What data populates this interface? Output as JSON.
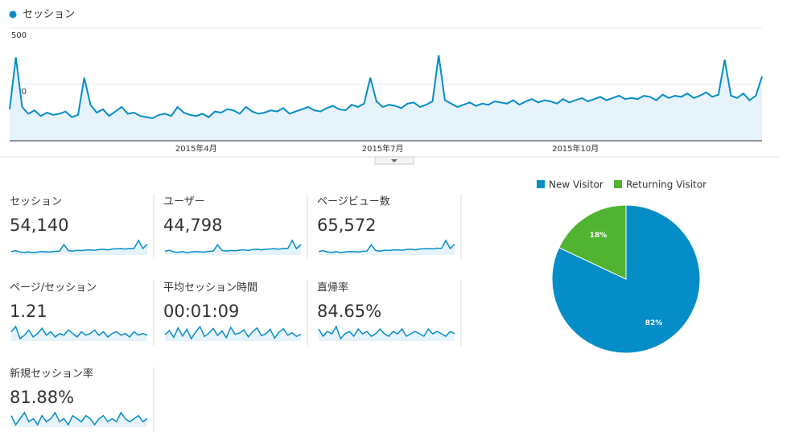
{
  "chart_data": [
    {
      "type": "line",
      "categories": [
        null,
        null,
        null,
        null,
        null,
        null,
        null,
        null,
        null,
        null,
        null,
        null,
        null,
        null,
        null,
        null,
        null,
        null,
        null,
        null,
        null,
        null,
        null,
        null,
        null,
        null,
        null,
        null,
        null,
        null,
        "2015年4月",
        null,
        null,
        null,
        null,
        null,
        null,
        null,
        null,
        null,
        null,
        null,
        null,
        null,
        null,
        null,
        null,
        null,
        null,
        null,
        null,
        null,
        null,
        null,
        null,
        null,
        null,
        null,
        null,
        null,
        "2015年7月",
        null,
        null,
        null,
        null,
        null,
        null,
        null,
        null,
        null,
        null,
        null,
        null,
        null,
        null,
        null,
        null,
        null,
        null,
        null,
        null,
        null,
        null,
        null,
        null,
        null,
        null,
        null,
        null,
        null,
        null,
        "2015年10月",
        null,
        null,
        null,
        null,
        null,
        null,
        null,
        null,
        null,
        null,
        null,
        null,
        null,
        null,
        null,
        null,
        null,
        null,
        null,
        null,
        null,
        null,
        null,
        null,
        null,
        null,
        null,
        null,
        null,
        null
      ],
      "series": [
        {
          "name": "セッション",
          "color": "#058dc7",
          "values": [
            140,
            370,
            150,
            120,
            135,
            110,
            125,
            115,
            120,
            130,
            105,
            115,
            280,
            160,
            125,
            140,
            110,
            130,
            150,
            120,
            125,
            110,
            105,
            100,
            115,
            120,
            110,
            150,
            125,
            115,
            110,
            120,
            105,
            130,
            125,
            140,
            135,
            120,
            150,
            130,
            120,
            125,
            135,
            130,
            145,
            120,
            130,
            140,
            150,
            135,
            130,
            145,
            155,
            140,
            135,
            160,
            150,
            165,
            280,
            175,
            150,
            160,
            155,
            145,
            165,
            170,
            150,
            160,
            175,
            380,
            180,
            165,
            150,
            160,
            170,
            155,
            165,
            160,
            175,
            170,
            165,
            180,
            160,
            175,
            185,
            170,
            180,
            175,
            165,
            185,
            170,
            180,
            190,
            175,
            185,
            195,
            180,
            190,
            200,
            185,
            190,
            185,
            200,
            195,
            180,
            205,
            190,
            200,
            195,
            210,
            190,
            200,
            215,
            195,
            205,
            360,
            200,
            190,
            210,
            180,
            200,
            285
          ]
        }
      ],
      "ylim": [
        0,
        500
      ],
      "yticks": [
        250,
        500
      ],
      "grid": true
    },
    {
      "type": "pie",
      "categories": [
        "New Visitor",
        "Returning Visitor"
      ],
      "values": [
        82,
        18
      ],
      "value_labels": [
        "82%",
        "18%"
      ],
      "colors": [
        "#058dc7",
        "#50b432"
      ],
      "legend": "top"
    }
  ],
  "metrics": [
    {
      "label": "セッション",
      "value": "54,140",
      "sparkline": [
        140,
        160,
        130,
        125,
        135,
        120,
        130,
        140,
        135,
        130,
        145,
        150,
        280,
        160,
        150,
        165,
        160,
        170,
        175,
        165,
        180,
        185,
        175,
        190,
        195,
        200,
        190,
        205,
        200,
        360,
        200,
        285
      ]
    },
    {
      "label": "ユーザー",
      "value": "44,798",
      "sparkline": [
        120,
        140,
        110,
        105,
        115,
        100,
        110,
        115,
        112,
        110,
        120,
        125,
        230,
        135,
        125,
        135,
        130,
        140,
        145,
        135,
        150,
        155,
        145,
        155,
        160,
        165,
        155,
        170,
        165,
        300,
        165,
        235
      ]
    },
    {
      "label": "ページビュー数",
      "value": "65,572",
      "sparkline": [
        170,
        190,
        160,
        150,
        165,
        145,
        160,
        170,
        165,
        160,
        175,
        180,
        330,
        195,
        180,
        200,
        195,
        205,
        210,
        200,
        220,
        225,
        210,
        230,
        235,
        240,
        230,
        250,
        240,
        430,
        240,
        345
      ]
    },
    {
      "label": "ページ/セッション",
      "value": "1.21",
      "sparkline": [
        1.22,
        1.25,
        1.18,
        1.2,
        1.23,
        1.19,
        1.21,
        1.24,
        1.2,
        1.22,
        1.19,
        1.21,
        1.2,
        1.23,
        1.21,
        1.19,
        1.22,
        1.2,
        1.21,
        1.23,
        1.2,
        1.22,
        1.19,
        1.21,
        1.22,
        1.2,
        1.21,
        1.19,
        1.22,
        1.2,
        1.21,
        1.2
      ]
    },
    {
      "label": "平均セッション時間",
      "value": "00:01:09",
      "sparkline": [
        65,
        80,
        55,
        90,
        60,
        85,
        50,
        75,
        95,
        58,
        70,
        88,
        62,
        79,
        54,
        92,
        66,
        71,
        83,
        57,
        76,
        90,
        61,
        68,
        85,
        52,
        74,
        87,
        63,
        72,
        58,
        66
      ]
    },
    {
      "label": "直帰率",
      "value": "84.65%",
      "sparkline": [
        84.8,
        84.5,
        84.7,
        84.6,
        84.9,
        84.4,
        84.6,
        84.7,
        84.5,
        84.8,
        84.6,
        84.7,
        84.5,
        84.6,
        84.8,
        84.6,
        84.5,
        84.7,
        84.6,
        84.8,
        84.5,
        84.6,
        84.7,
        84.6,
        84.5,
        84.8,
        84.6,
        84.7,
        84.6,
        84.5,
        84.7,
        84.6
      ]
    },
    {
      "label": "新規セッション率",
      "value": "81.88%",
      "sparkline": [
        82.0,
        81.7,
        81.9,
        82.1,
        81.8,
        81.9,
        81.7,
        82.0,
        81.8,
        81.9,
        82.1,
        81.8,
        81.9,
        81.7,
        82.0,
        81.9,
        81.8,
        82.0,
        81.9,
        81.7,
        81.9,
        82.0,
        81.8,
        81.9,
        81.8,
        82.1,
        81.9,
        81.8,
        81.9,
        82.0,
        81.8,
        81.9
      ]
    }
  ]
}
